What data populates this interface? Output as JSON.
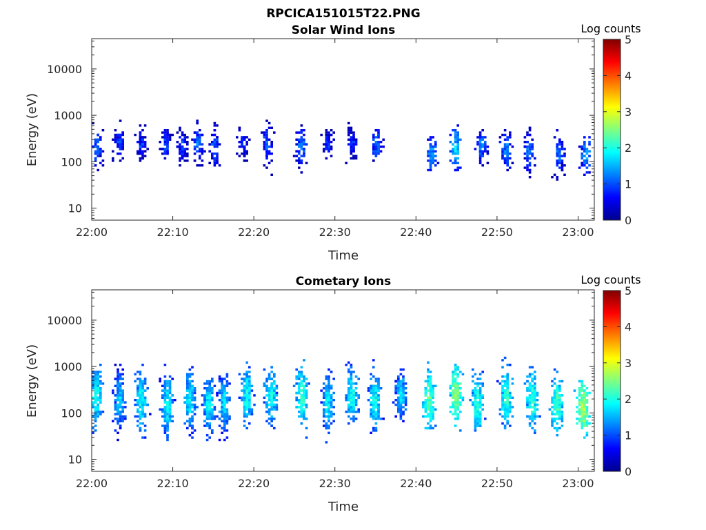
{
  "figure_title": "RPCICA151015T22.PNG",
  "colors": {
    "colormap": [
      "#00008f",
      "#0000ff",
      "#0080ff",
      "#00ffff",
      "#80ff80",
      "#ffff00",
      "#ff8000",
      "#ff0000",
      "#800000"
    ]
  },
  "chart_data": [
    {
      "type": "heatmap",
      "title": "Solar Wind Ions",
      "xlabel": "Time",
      "ylabel": "Energy (eV)",
      "x_ticks": [
        "22:00",
        "22:10",
        "22:20",
        "22:30",
        "22:40",
        "22:50",
        "23:00"
      ],
      "x_range": [
        "22:00",
        "23:02"
      ],
      "y_scale": "log",
      "y_ticks": [
        "10",
        "100",
        "1000",
        "10000"
      ],
      "y_range": [
        5.5,
        45000
      ],
      "colorbar": {
        "label": "Log counts",
        "range": [
          0,
          5
        ],
        "ticks": [
          "0",
          "1",
          "2",
          "3",
          "4",
          "5"
        ]
      },
      "clusters": [
        {
          "t": 0.5,
          "e_center": 200,
          "spread": 0.35,
          "intensity": 1.3
        },
        {
          "t": 3.3,
          "e_center": 260,
          "spread": 0.3,
          "intensity": 1.1
        },
        {
          "t": 6.0,
          "e_center": 260,
          "spread": 0.3,
          "intensity": 1.0
        },
        {
          "t": 9.0,
          "e_center": 250,
          "spread": 0.28,
          "intensity": 1.1
        },
        {
          "t": 11.0,
          "e_center": 220,
          "spread": 0.3,
          "intensity": 1.1
        },
        {
          "t": 13.0,
          "e_center": 270,
          "spread": 0.35,
          "intensity": 1.3
        },
        {
          "t": 15.0,
          "e_center": 220,
          "spread": 0.4,
          "intensity": 1.2
        },
        {
          "t": 18.5,
          "e_center": 260,
          "spread": 0.3,
          "intensity": 1.1
        },
        {
          "t": 21.5,
          "e_center": 250,
          "spread": 0.35,
          "intensity": 1.2
        },
        {
          "t": 25.8,
          "e_center": 220,
          "spread": 0.35,
          "intensity": 1.4
        },
        {
          "t": 29.0,
          "e_center": 260,
          "spread": 0.25,
          "intensity": 1.0
        },
        {
          "t": 32.0,
          "e_center": 260,
          "spread": 0.3,
          "intensity": 1.0
        },
        {
          "t": 35.0,
          "e_center": 260,
          "spread": 0.35,
          "intensity": 1.3
        },
        {
          "t": 41.8,
          "e_center": 160,
          "spread": 0.3,
          "intensity": 1.6
        },
        {
          "t": 44.8,
          "e_center": 200,
          "spread": 0.35,
          "intensity": 1.8
        },
        {
          "t": 48.0,
          "e_center": 230,
          "spread": 0.3,
          "intensity": 1.4
        },
        {
          "t": 51.0,
          "e_center": 200,
          "spread": 0.35,
          "intensity": 1.4
        },
        {
          "t": 53.8,
          "e_center": 170,
          "spread": 0.35,
          "intensity": 1.3
        },
        {
          "t": 57.5,
          "e_center": 150,
          "spread": 0.35,
          "intensity": 1.3
        },
        {
          "t": 60.8,
          "e_center": 150,
          "spread": 0.35,
          "intensity": 1.6
        }
      ]
    },
    {
      "type": "heatmap",
      "title": "Cometary Ions",
      "xlabel": "Time",
      "ylabel": "Energy (eV)",
      "x_ticks": [
        "22:00",
        "22:10",
        "22:20",
        "22:30",
        "22:40",
        "22:50",
        "23:00"
      ],
      "x_range": [
        "22:00",
        "23:02"
      ],
      "y_scale": "log",
      "y_ticks": [
        "10",
        "100",
        "1000",
        "10000"
      ],
      "y_range": [
        5.5,
        45000
      ],
      "colorbar": {
        "label": "Log counts",
        "range": [
          0,
          5
        ],
        "ticks": [
          "0",
          "1",
          "2",
          "3",
          "4",
          "5"
        ]
      },
      "clusters": [
        {
          "t": 0.5,
          "e_center": 250,
          "spread": 0.55,
          "intensity": 2.1
        },
        {
          "t": 3.3,
          "e_center": 200,
          "spread": 0.5,
          "intensity": 1.8
        },
        {
          "t": 6.0,
          "e_center": 200,
          "spread": 0.5,
          "intensity": 2.1
        },
        {
          "t": 9.2,
          "e_center": 170,
          "spread": 0.55,
          "intensity": 2.0
        },
        {
          "t": 12.0,
          "e_center": 200,
          "spread": 0.5,
          "intensity": 2.0
        },
        {
          "t": 14.3,
          "e_center": 150,
          "spread": 0.5,
          "intensity": 2.0
        },
        {
          "t": 16.2,
          "e_center": 170,
          "spread": 0.5,
          "intensity": 1.9
        },
        {
          "t": 19.0,
          "e_center": 250,
          "spread": 0.5,
          "intensity": 2.1
        },
        {
          "t": 22.0,
          "e_center": 250,
          "spread": 0.5,
          "intensity": 2.1
        },
        {
          "t": 25.8,
          "e_center": 250,
          "spread": 0.5,
          "intensity": 2.3
        },
        {
          "t": 29.0,
          "e_center": 170,
          "spread": 0.5,
          "intensity": 2.0
        },
        {
          "t": 32.0,
          "e_center": 250,
          "spread": 0.5,
          "intensity": 2.1
        },
        {
          "t": 34.8,
          "e_center": 200,
          "spread": 0.5,
          "intensity": 2.1
        },
        {
          "t": 38.0,
          "e_center": 250,
          "spread": 0.4,
          "intensity": 1.9
        },
        {
          "t": 41.5,
          "e_center": 200,
          "spread": 0.5,
          "intensity": 2.5
        },
        {
          "t": 44.8,
          "e_center": 250,
          "spread": 0.5,
          "intensity": 2.7
        },
        {
          "t": 47.5,
          "e_center": 170,
          "spread": 0.5,
          "intensity": 2.3
        },
        {
          "t": 51.0,
          "e_center": 250,
          "spread": 0.5,
          "intensity": 2.3
        },
        {
          "t": 54.2,
          "e_center": 200,
          "spread": 0.5,
          "intensity": 2.3
        },
        {
          "t": 57.3,
          "e_center": 170,
          "spread": 0.5,
          "intensity": 2.4
        },
        {
          "t": 60.5,
          "e_center": 130,
          "spread": 0.45,
          "intensity": 2.9
        }
      ]
    }
  ]
}
